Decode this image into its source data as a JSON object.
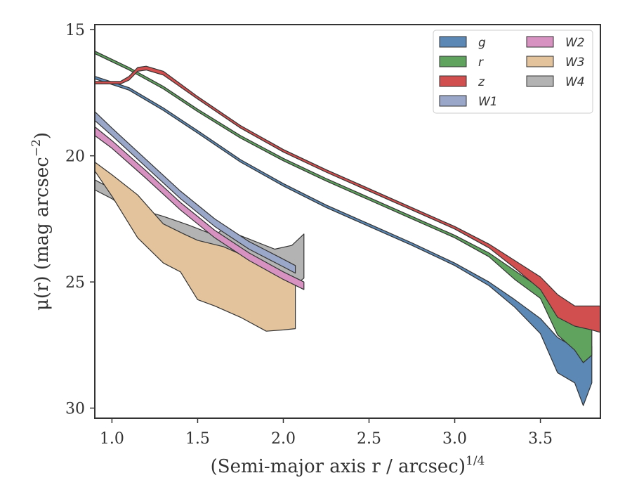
{
  "chart_data": {
    "type": "area",
    "xlabel": "(Semi-major axis r / arcsec)",
    "xlabel_exponent": "1/4",
    "ylabel": "μ(r) (mag arcsec",
    "ylabel_exponent": "−2",
    "ylabel_close": ")",
    "xlim": [
      0.9,
      3.85
    ],
    "ylim": [
      30.4,
      14.8
    ],
    "y_inverted": true,
    "xticks": [
      1.0,
      1.5,
      2.0,
      2.5,
      3.0,
      3.5
    ],
    "xtick_labels": [
      "1.0",
      "1.5",
      "2.0",
      "2.5",
      "3.0",
      "3.5"
    ],
    "yticks": [
      15,
      20,
      25,
      30
    ],
    "ytick_labels": [
      "15",
      "20",
      "25",
      "30"
    ],
    "grid": false,
    "legend_position": "top-right",
    "legend_columns": 2,
    "series": [
      {
        "name": "g",
        "color": "#5b88b5",
        "upper": [
          [
            0.9,
            16.85
          ],
          [
            1.1,
            17.3
          ],
          [
            1.3,
            18.1
          ],
          [
            1.5,
            19.0
          ],
          [
            1.75,
            20.15
          ],
          [
            2.0,
            21.1
          ],
          [
            2.25,
            21.95
          ],
          [
            2.5,
            22.7
          ],
          [
            2.75,
            23.45
          ],
          [
            3.0,
            24.25
          ],
          [
            3.2,
            25.0
          ],
          [
            3.35,
            25.7
          ],
          [
            3.5,
            26.45
          ],
          [
            3.6,
            27.2
          ],
          [
            3.7,
            27.6
          ],
          [
            3.8,
            27.55
          ]
        ],
        "lower": [
          [
            3.8,
            29.0
          ],
          [
            3.75,
            29.9
          ],
          [
            3.7,
            29.0
          ],
          [
            3.6,
            28.6
          ],
          [
            3.5,
            27.05
          ],
          [
            3.35,
            26.0
          ],
          [
            3.2,
            25.15
          ],
          [
            3.0,
            24.35
          ],
          [
            2.75,
            23.55
          ],
          [
            2.5,
            22.8
          ],
          [
            2.25,
            22.05
          ],
          [
            2.0,
            21.2
          ],
          [
            1.75,
            20.25
          ],
          [
            1.5,
            19.1
          ],
          [
            1.3,
            18.2
          ],
          [
            1.1,
            17.4
          ],
          [
            0.9,
            16.95
          ]
        ]
      },
      {
        "name": "r",
        "color": "#5fa35f",
        "upper": [
          [
            0.9,
            15.85
          ],
          [
            1.1,
            16.5
          ],
          [
            1.3,
            17.25
          ],
          [
            1.5,
            18.15
          ],
          [
            1.75,
            19.2
          ],
          [
            2.0,
            20.1
          ],
          [
            2.25,
            20.9
          ],
          [
            2.5,
            21.65
          ],
          [
            2.75,
            22.4
          ],
          [
            3.0,
            23.15
          ],
          [
            3.2,
            23.85
          ],
          [
            3.35,
            24.55
          ],
          [
            3.5,
            25.25
          ],
          [
            3.6,
            26.1
          ],
          [
            3.7,
            26.7
          ],
          [
            3.8,
            26.45
          ]
        ],
        "lower": [
          [
            3.8,
            27.9
          ],
          [
            3.75,
            28.2
          ],
          [
            3.7,
            27.7
          ],
          [
            3.6,
            27.1
          ],
          [
            3.5,
            25.65
          ],
          [
            3.35,
            24.9
          ],
          [
            3.2,
            24.0
          ],
          [
            3.0,
            23.25
          ],
          [
            2.75,
            22.5
          ],
          [
            2.5,
            21.75
          ],
          [
            2.25,
            21.0
          ],
          [
            2.0,
            20.2
          ],
          [
            1.75,
            19.3
          ],
          [
            1.5,
            18.25
          ],
          [
            1.3,
            17.35
          ],
          [
            1.1,
            16.6
          ],
          [
            0.9,
            15.95
          ]
        ]
      },
      {
        "name": "z",
        "color": "#d24f4f",
        "upper": [
          [
            0.9,
            17.05
          ],
          [
            1.05,
            17.05
          ],
          [
            1.1,
            16.85
          ],
          [
            1.15,
            16.5
          ],
          [
            1.2,
            16.45
          ],
          [
            1.3,
            16.65
          ],
          [
            1.5,
            17.65
          ],
          [
            1.75,
            18.8
          ],
          [
            2.0,
            19.75
          ],
          [
            2.25,
            20.55
          ],
          [
            2.5,
            21.3
          ],
          [
            2.75,
            22.05
          ],
          [
            3.0,
            22.8
          ],
          [
            3.2,
            23.5
          ],
          [
            3.35,
            24.15
          ],
          [
            3.5,
            24.8
          ],
          [
            3.6,
            25.5
          ],
          [
            3.7,
            25.95
          ],
          [
            3.85,
            25.95
          ]
        ],
        "lower": [
          [
            3.85,
            27.0
          ],
          [
            3.8,
            26.9
          ],
          [
            3.7,
            26.75
          ],
          [
            3.6,
            26.4
          ],
          [
            3.5,
            25.3
          ],
          [
            3.35,
            24.45
          ],
          [
            3.2,
            23.65
          ],
          [
            3.0,
            22.9
          ],
          [
            2.75,
            22.15
          ],
          [
            2.5,
            21.4
          ],
          [
            2.25,
            20.65
          ],
          [
            2.0,
            19.85
          ],
          [
            1.75,
            18.9
          ],
          [
            1.5,
            17.75
          ],
          [
            1.3,
            16.8
          ],
          [
            1.2,
            16.6
          ],
          [
            1.15,
            16.65
          ],
          [
            1.1,
            17.0
          ],
          [
            1.05,
            17.15
          ],
          [
            0.9,
            17.15
          ]
        ]
      },
      {
        "name": "W1",
        "color": "#9aa7c8",
        "upper": [
          [
            0.9,
            18.25
          ],
          [
            1.0,
            18.9
          ],
          [
            1.2,
            20.15
          ],
          [
            1.4,
            21.4
          ],
          [
            1.6,
            22.5
          ],
          [
            1.8,
            23.4
          ],
          [
            2.0,
            24.1
          ],
          [
            2.07,
            24.35
          ]
        ],
        "lower": [
          [
            2.07,
            24.65
          ],
          [
            2.0,
            24.4
          ],
          [
            1.8,
            23.7
          ],
          [
            1.6,
            22.8
          ],
          [
            1.4,
            21.7
          ],
          [
            1.2,
            20.45
          ],
          [
            1.0,
            19.2
          ],
          [
            0.9,
            18.6
          ]
        ]
      },
      {
        "name": "W2",
        "color": "#d892c2",
        "upper": [
          [
            0.9,
            18.85
          ],
          [
            1.0,
            19.4
          ],
          [
            1.2,
            20.6
          ],
          [
            1.4,
            21.85
          ],
          [
            1.6,
            22.95
          ],
          [
            1.8,
            23.85
          ],
          [
            2.0,
            24.6
          ],
          [
            2.12,
            25.0
          ]
        ],
        "lower": [
          [
            2.12,
            25.3
          ],
          [
            2.0,
            24.9
          ],
          [
            1.8,
            24.15
          ],
          [
            1.6,
            23.25
          ],
          [
            1.4,
            22.15
          ],
          [
            1.2,
            20.9
          ],
          [
            1.0,
            19.7
          ],
          [
            0.9,
            19.2
          ]
        ]
      },
      {
        "name": "W3",
        "color": "#e2c39c",
        "upper": [
          [
            0.9,
            20.25
          ],
          [
            1.0,
            20.75
          ],
          [
            1.15,
            21.55
          ],
          [
            1.3,
            22.7
          ],
          [
            1.42,
            23.1
          ],
          [
            1.5,
            23.35
          ],
          [
            1.65,
            23.6
          ],
          [
            1.8,
            24.05
          ],
          [
            2.0,
            24.8
          ],
          [
            2.07,
            25.0
          ]
        ],
        "lower": [
          [
            2.07,
            26.85
          ],
          [
            2.0,
            26.9
          ],
          [
            1.9,
            26.95
          ],
          [
            1.75,
            26.4
          ],
          [
            1.6,
            25.95
          ],
          [
            1.5,
            25.7
          ],
          [
            1.4,
            24.6
          ],
          [
            1.3,
            24.25
          ],
          [
            1.15,
            23.25
          ],
          [
            1.0,
            21.6
          ],
          [
            0.9,
            20.6
          ]
        ]
      },
      {
        "name": "W4",
        "color": "#b3b3b3",
        "upper": [
          [
            0.9,
            20.95
          ],
          [
            1.05,
            21.5
          ],
          [
            1.2,
            22.2
          ],
          [
            1.3,
            22.4
          ],
          [
            1.45,
            22.75
          ],
          [
            1.6,
            23.15
          ],
          [
            1.65,
            22.9
          ],
          [
            1.8,
            23.3
          ],
          [
            1.95,
            23.7
          ],
          [
            2.05,
            23.55
          ],
          [
            2.12,
            23.1
          ]
        ],
        "lower": [
          [
            2.12,
            24.85
          ],
          [
            2.05,
            25.2
          ],
          [
            2.0,
            25.5
          ],
          [
            1.9,
            25.4
          ],
          [
            1.8,
            24.9
          ],
          [
            1.65,
            24.45
          ],
          [
            1.5,
            24.0
          ],
          [
            1.4,
            23.9
          ],
          [
            1.32,
            24.0
          ],
          [
            1.25,
            23.2
          ],
          [
            1.15,
            22.45
          ],
          [
            1.0,
            21.7
          ],
          [
            0.9,
            21.35
          ]
        ]
      }
    ],
    "legend": [
      {
        "label": "g",
        "color": "#5b88b5"
      },
      {
        "label": "r",
        "color": "#5fa35f"
      },
      {
        "label": "z",
        "color": "#d24f4f"
      },
      {
        "label": "W1",
        "color": "#9aa7c8"
      },
      {
        "label": "W2",
        "color": "#d892c2"
      },
      {
        "label": "W3",
        "color": "#e2c39c"
      },
      {
        "label": "W4",
        "color": "#b3b3b3"
      }
    ]
  }
}
